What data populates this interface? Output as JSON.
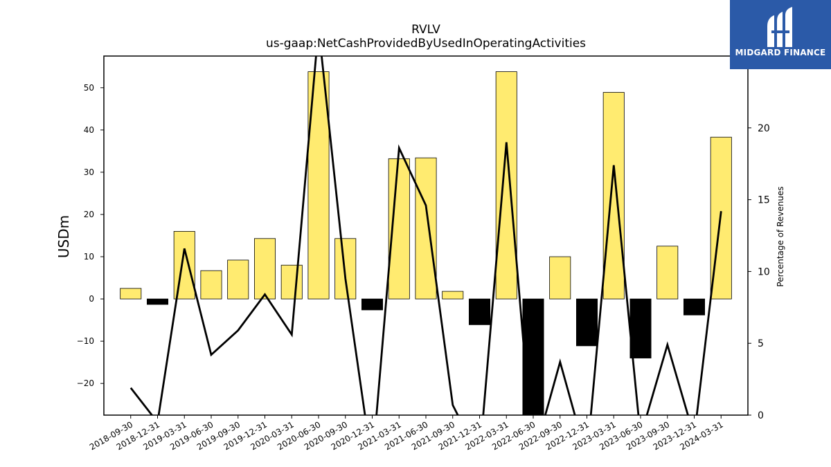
{
  "chart_data": {
    "type": "bar",
    "title": "RVLV",
    "subtitle": "us-gaap:NetCashProvidedByUsedInOperatingActivities",
    "ylabel": "USDm",
    "y2label": "Percentage of Revenues",
    "ylim": [
      -27.5,
      57.5
    ],
    "y2lim": [
      0,
      25
    ],
    "yticks": [
      -20,
      -10,
      0,
      10,
      20,
      30,
      40,
      50
    ],
    "y2ticks": [
      0,
      5,
      10,
      15,
      20
    ],
    "categories": [
      "2018-09-30",
      "2018-12-31",
      "2019-03-31",
      "2019-06-30",
      "2019-09-30",
      "2019-12-31",
      "2020-03-31",
      "2020-06-30",
      "2020-09-30",
      "2020-12-31",
      "2021-03-31",
      "2021-06-30",
      "2021-09-30",
      "2021-12-31",
      "2022-03-31",
      "2022-06-30",
      "2022-09-30",
      "2022-12-31",
      "2023-03-31",
      "2023-06-30",
      "2023-09-30",
      "2023-12-31",
      "2024-03-31"
    ],
    "series": [
      {
        "type": "bar",
        "axis": "left",
        "values": [
          2.5,
          -1.3,
          16.0,
          6.7,
          9.2,
          14.3,
          8.0,
          53.8,
          14.3,
          -2.6,
          33.2,
          33.4,
          1.8,
          -6.1,
          53.8,
          -27.5,
          10.0,
          -11.1,
          48.9,
          -14.0,
          12.5,
          -3.8,
          38.3
        ],
        "color_positive": "#ffeb70",
        "color_negative": "#000000"
      },
      {
        "type": "line",
        "axis": "right",
        "values": [
          1.9,
          -0.5,
          11.6,
          4.2,
          5.9,
          8.4,
          5.6,
          27.0,
          9.5,
          -3.5,
          18.6,
          14.6,
          0.7,
          -3.0,
          19.0,
          -3.0,
          3.7,
          -3.0,
          17.4,
          -1.5,
          4.9,
          -1.5,
          14.2
        ],
        "color": "#000000"
      }
    ]
  },
  "logo": {
    "text": "MIDGARD FINANCE"
  },
  "colors": {
    "bar_positive": "#ffeb70",
    "bar_negative": "#000000",
    "logo_bg": "#2b5aa8"
  }
}
